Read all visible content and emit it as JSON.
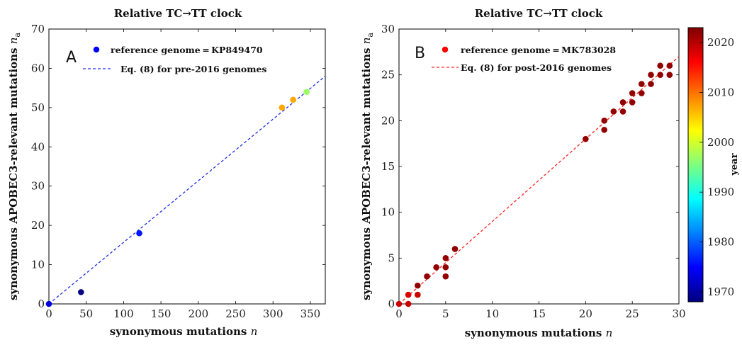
{
  "chart_data": [
    {
      "type": "scatter",
      "panel": "A",
      "title": "Relative TC→TT clock",
      "xlabel": "synonymous mutations",
      "xlabel_var": "n",
      "ylabel": "synonymous APOBEC3-relevant mutations",
      "ylabel_var": "n",
      "ylabel_sub": "a",
      "xlim": [
        0,
        370
      ],
      "ylim": [
        0,
        70
      ],
      "xticks": [
        0,
        50,
        100,
        150,
        200,
        250,
        300,
        350
      ],
      "yticks": [
        0,
        10,
        20,
        30,
        40,
        50,
        60,
        70
      ],
      "legend": {
        "position": "top-left",
        "point_label": "reference genome = KP849470",
        "line_label": "Eq. (8) for pre-2016 genomes",
        "point_color": "#0000ff",
        "line_color": "#1f2fe8"
      },
      "fit_line": {
        "slope": 0.1568,
        "intercept": 0
      },
      "points": [
        {
          "x": 0,
          "y": 0,
          "year": 1973
        },
        {
          "x": 43,
          "y": 3,
          "year": 1968
        },
        {
          "x": 121,
          "y": 18,
          "year": 1976
        },
        {
          "x": 312,
          "y": 50,
          "year": 2007
        },
        {
          "x": 327,
          "y": 52,
          "year": 2007
        },
        {
          "x": 345,
          "y": 54,
          "year": 1997
        }
      ]
    },
    {
      "type": "scatter",
      "panel": "B",
      "title": "Relative TC→TT clock",
      "xlabel": "synonymous mutations",
      "xlabel_var": "n",
      "ylabel": "synonymous APOBEC3-relevant mutations",
      "ylabel_var": "n",
      "ylabel_sub": "a",
      "xlim": [
        0,
        30
      ],
      "ylim": [
        0,
        30
      ],
      "xticks": [
        0,
        5,
        10,
        15,
        20,
        25,
        30
      ],
      "yticks": [
        0,
        5,
        10,
        15,
        20,
        25,
        30
      ],
      "legend": {
        "position": "top-left",
        "point_label": "reference genome = MK783028",
        "line_label": "Eq. (8) for post-2016 genomes",
        "point_color": "#ff0000",
        "line_color": "#ff2020"
      },
      "fit_line": {
        "slope": 0.9,
        "intercept": 0
      },
      "points": [
        {
          "x": 0,
          "y": 0,
          "year": 2019
        },
        {
          "x": 1,
          "y": 1,
          "year": 2018
        },
        {
          "x": 1,
          "y": 0,
          "year": 2019
        },
        {
          "x": 2,
          "y": 2,
          "year": 2022
        },
        {
          "x": 2,
          "y": 1,
          "year": 2019
        },
        {
          "x": 3,
          "y": 3,
          "year": 2022
        },
        {
          "x": 4,
          "y": 4,
          "year": 2022
        },
        {
          "x": 5,
          "y": 5,
          "year": 2022
        },
        {
          "x": 5,
          "y": 4,
          "year": 2022
        },
        {
          "x": 5,
          "y": 3,
          "year": 2022
        },
        {
          "x": 6,
          "y": 6,
          "year": 2022
        },
        {
          "x": 20,
          "y": 18,
          "year": 2022
        },
        {
          "x": 22,
          "y": 20,
          "year": 2022
        },
        {
          "x": 22,
          "y": 19,
          "year": 2022
        },
        {
          "x": 23,
          "y": 21,
          "year": 2022
        },
        {
          "x": 24,
          "y": 22,
          "year": 2022
        },
        {
          "x": 24,
          "y": 21,
          "year": 2022
        },
        {
          "x": 25,
          "y": 23,
          "year": 2022
        },
        {
          "x": 25,
          "y": 22,
          "year": 2022
        },
        {
          "x": 26,
          "y": 24,
          "year": 2022
        },
        {
          "x": 26,
          "y": 23,
          "year": 2022
        },
        {
          "x": 27,
          "y": 25,
          "year": 2022
        },
        {
          "x": 27,
          "y": 24,
          "year": 2022
        },
        {
          "x": 28,
          "y": 26,
          "year": 2022
        },
        {
          "x": 28,
          "y": 25,
          "year": 2022
        },
        {
          "x": 29,
          "y": 26,
          "year": 2022
        },
        {
          "x": 29,
          "y": 25,
          "year": 2022
        }
      ]
    }
  ],
  "colorbar": {
    "label": "year",
    "min": 1968,
    "max": 2023,
    "ticks": [
      1970,
      1980,
      1990,
      2000,
      2010,
      2020
    ],
    "colormap": "jet"
  }
}
